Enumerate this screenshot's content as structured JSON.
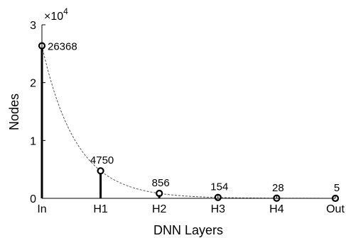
{
  "chart_data": {
    "type": "line",
    "title": "",
    "xlabel": "DNN Layers",
    "ylabel": "Nodes",
    "categories": [
      "In",
      "H1",
      "H2",
      "H3",
      "H4",
      "Out"
    ],
    "values": [
      26368,
      4750,
      856,
      154,
      28,
      5
    ],
    "data_labels": [
      "26368",
      "4750",
      "856",
      "154",
      "28",
      "5"
    ],
    "ylim": [
      0,
      30000
    ],
    "y_ticks": [
      0,
      10000,
      20000,
      30000
    ],
    "y_tick_labels": [
      "0",
      "1",
      "2",
      "3"
    ],
    "y_multiplier": {
      "base": "×10",
      "exponent": "4"
    },
    "grid": false,
    "legend": "none",
    "series_style": "stem markers with dashed trend curve",
    "colors": {
      "stem": "#000000",
      "marker_edge": "#000000",
      "trend": "#555555",
      "axes": "#000000"
    }
  }
}
